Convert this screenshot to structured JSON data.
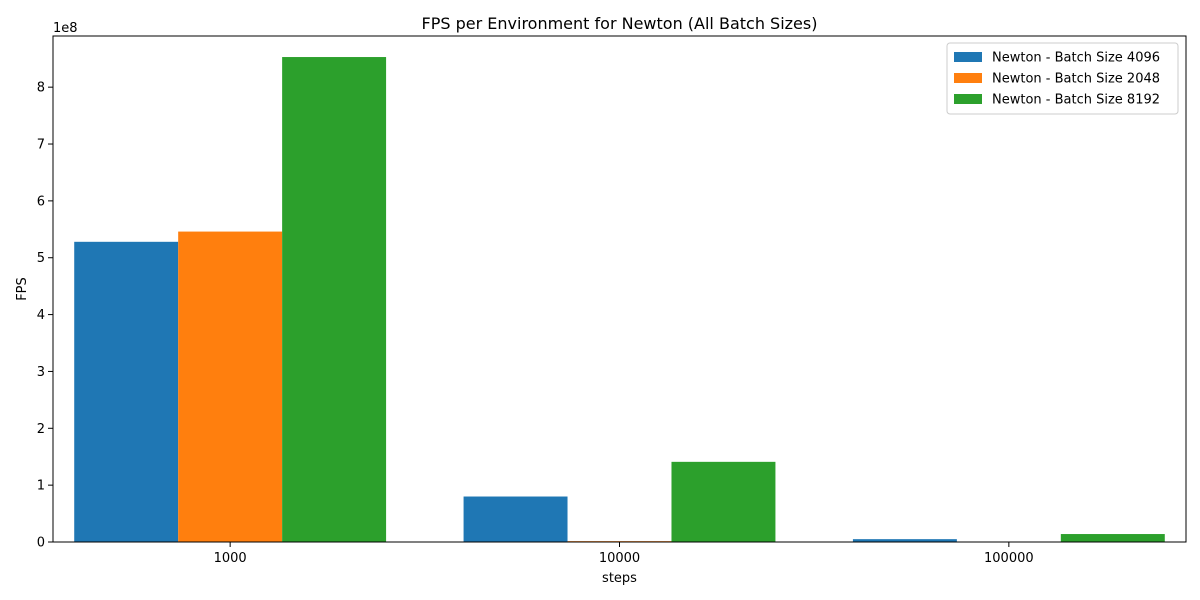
{
  "chart_data": {
    "type": "bar",
    "title": "FPS per Environment for Newton (All Batch Sizes)",
    "xlabel": "steps",
    "ylabel": "FPS",
    "y_offset_label": "1e8",
    "y_scale": 100000000,
    "ylim": [
      0,
      890000000
    ],
    "yticks": [
      0,
      100000000,
      200000000,
      300000000,
      400000000,
      500000000,
      600000000,
      700000000,
      800000000
    ],
    "ytick_labels": [
      "0",
      "1",
      "2",
      "3",
      "4",
      "5",
      "6",
      "7",
      "8"
    ],
    "categories": [
      "1000",
      "10000",
      "100000"
    ],
    "series": [
      {
        "name": "Newton - Batch Size 4096",
        "color": "#1f77b4",
        "values": [
          528000000,
          80000000,
          5000000
        ]
      },
      {
        "name": "Newton - Batch Size 2048",
        "color": "#ff7f0e",
        "values": [
          546000000,
          1500000,
          0
        ]
      },
      {
        "name": "Newton - Batch Size 8192",
        "color": "#2ca02c",
        "values": [
          853000000,
          141000000,
          14000000
        ]
      }
    ],
    "legend_position": "top-right",
    "grid": false
  }
}
